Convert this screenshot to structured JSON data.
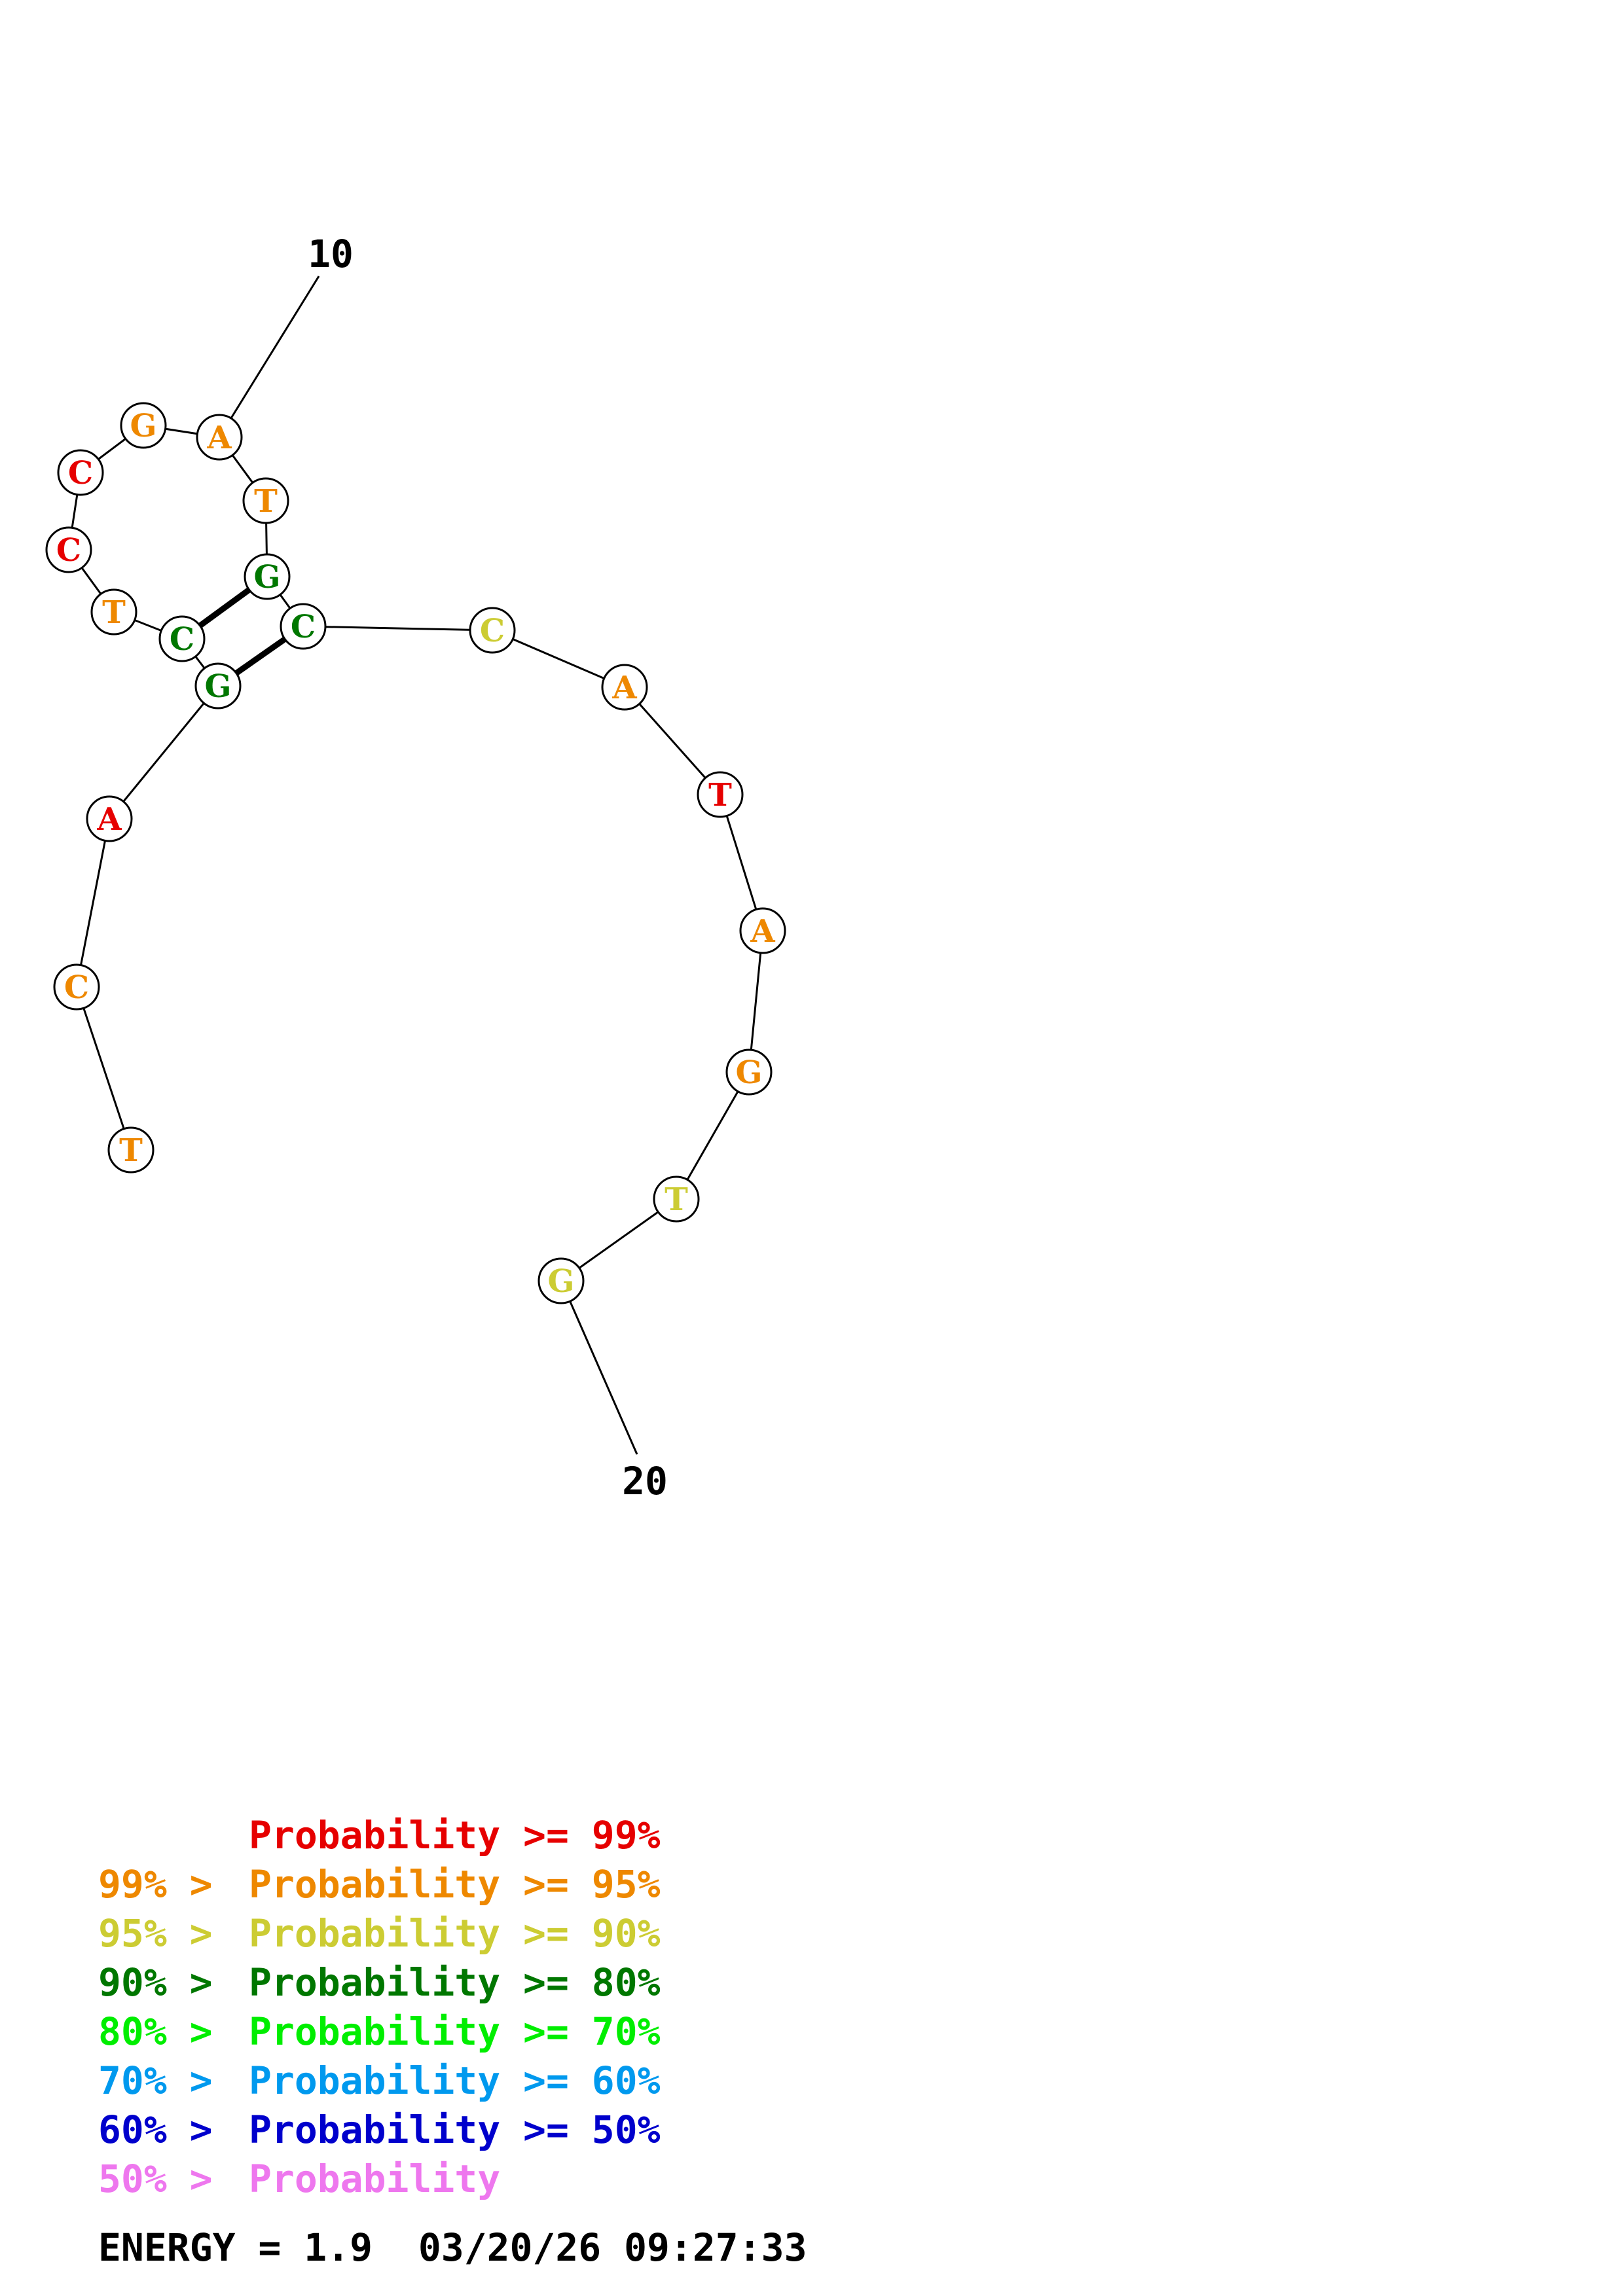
{
  "labels": {
    "start": "10",
    "end": "20"
  },
  "nucleotides": [
    {
      "char": "T",
      "color": "#ee8800"
    },
    {
      "char": "C",
      "color": "#ee8800"
    },
    {
      "char": "A",
      "color": "#e60000"
    },
    {
      "char": "G",
      "color": "#007700"
    },
    {
      "char": "C",
      "color": "#007700"
    },
    {
      "char": "T",
      "color": "#ee8800"
    },
    {
      "char": "C",
      "color": "#e60000"
    },
    {
      "char": "C",
      "color": "#e60000"
    },
    {
      "char": "G",
      "color": "#ee8800"
    },
    {
      "char": "A",
      "color": "#ee8800"
    },
    {
      "char": "T",
      "color": "#ee8800"
    },
    {
      "char": "G",
      "color": "#007700"
    },
    {
      "char": "C",
      "color": "#007700"
    },
    {
      "char": "C",
      "color": "#cccc33"
    },
    {
      "char": "A",
      "color": "#ee8800"
    },
    {
      "char": "T",
      "color": "#e60000"
    },
    {
      "char": "A",
      "color": "#ee8800"
    },
    {
      "char": "G",
      "color": "#ee8800"
    },
    {
      "char": "T",
      "color": "#cccc33"
    },
    {
      "char": "G",
      "color": "#cccc33"
    }
  ],
  "pairs": [
    [
      3,
      12
    ],
    [
      4,
      11
    ]
  ],
  "legend": [
    {
      "prefix": "",
      "text": "Probability >= 99%",
      "color": "#e60000"
    },
    {
      "prefix": "99% >",
      "text": "Probability >= 95%",
      "color": "#ee8800"
    },
    {
      "prefix": "95% >",
      "text": "Probability >= 90%",
      "color": "#cccc33"
    },
    {
      "prefix": "90% >",
      "text": "Probability >= 80%",
      "color": "#007700"
    },
    {
      "prefix": "80% >",
      "text": "Probability >= 70%",
      "color": "#00ee00"
    },
    {
      "prefix": "70% >",
      "text": "Probability >= 60%",
      "color": "#0099ee"
    },
    {
      "prefix": "60% >",
      "text": "Probability >= 50%",
      "color": "#0000cc"
    },
    {
      "prefix": "50% >",
      "text": "Probability",
      "color": "#ee77ee"
    }
  ],
  "energy": "ENERGY = 1.9  03/20/26 09:27:33"
}
